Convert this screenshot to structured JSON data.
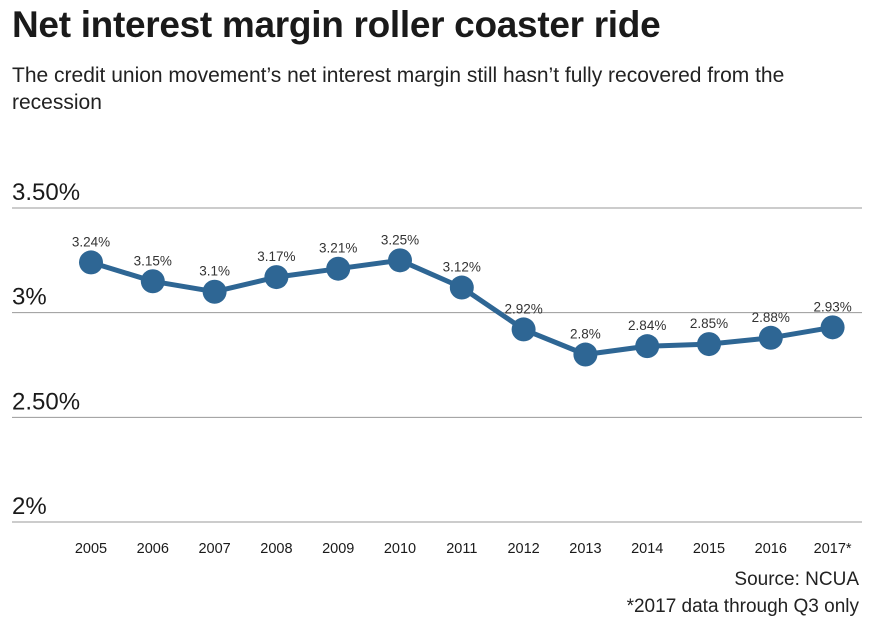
{
  "colors": {
    "line": "#2e6694",
    "grid": "#999999"
  },
  "chart_data": {
    "type": "line",
    "title": "Net interest margin roller coaster ride",
    "subtitle": "The credit union movement’s net interest margin still hasn’t fully recovered from the recession",
    "categories": [
      "2005",
      "2006",
      "2007",
      "2008",
      "2009",
      "2010",
      "2011",
      "2012",
      "2013",
      "2014",
      "2015",
      "2016",
      "2017*"
    ],
    "values": [
      3.24,
      3.15,
      3.1,
      3.17,
      3.21,
      3.25,
      3.12,
      2.92,
      2.8,
      2.84,
      2.85,
      2.88,
      2.93
    ],
    "data_labels": [
      "3.24%",
      "3.15%",
      "3.1%",
      "3.17%",
      "3.21%",
      "3.25%",
      "3.12%",
      "2.92%",
      "2.8%",
      "2.84%",
      "2.85%",
      "2.88%",
      "2.93%"
    ],
    "yticks": [
      3.5,
      3.0,
      2.5,
      2.0
    ],
    "ytick_labels": [
      "3.50%",
      "3%",
      "2.50%",
      "2%"
    ],
    "ylim": [
      2.0,
      3.5
    ],
    "xlabel": "",
    "ylabel": "",
    "grid": true
  },
  "footer": {
    "source": "Source: NCUA",
    "note": "*2017 data through Q3 only"
  }
}
